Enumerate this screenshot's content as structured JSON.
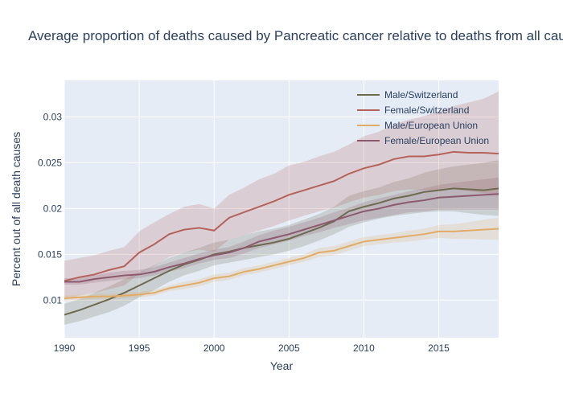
{
  "chart_data": {
    "type": "line",
    "title": "Average proportion of deaths caused by Pancreatic cancer relative to deaths from all causes",
    "xlabel": "Year",
    "ylabel": "Percent out of all death causes",
    "xlim": [
      1990,
      2019
    ],
    "ylim": [
      0.0059,
      0.034
    ],
    "x_ticks": [
      1990,
      1995,
      2000,
      2005,
      2010,
      2015
    ],
    "y_ticks": [
      0.01,
      0.015,
      0.02,
      0.025,
      0.03
    ],
    "y_tick_labels": [
      "0.01",
      "0.015",
      "0.02",
      "0.025",
      "0.03"
    ],
    "grid": true,
    "legend_position": "top-right",
    "x": [
      1990,
      1991,
      1992,
      1993,
      1994,
      1995,
      1996,
      1997,
      1998,
      1999,
      2000,
      2001,
      2002,
      2003,
      2004,
      2005,
      2006,
      2007,
      2008,
      2009,
      2010,
      2011,
      2012,
      2013,
      2014,
      2015,
      2016,
      2017,
      2018,
      2019
    ],
    "series": [
      {
        "name": "Male/Switzerland",
        "color": "#6e6a4f",
        "values": [
          0.0084,
          0.0089,
          0.0095,
          0.0101,
          0.0108,
          0.0116,
          0.0124,
          0.0132,
          0.0139,
          0.0144,
          0.015,
          0.0153,
          0.0157,
          0.016,
          0.0163,
          0.0167,
          0.0173,
          0.0179,
          0.0186,
          0.0197,
          0.0202,
          0.0206,
          0.0211,
          0.0214,
          0.0218,
          0.022,
          0.0222,
          0.0221,
          0.022,
          0.0222
        ],
        "lower": [
          0.0073,
          0.0077,
          0.0082,
          0.0087,
          0.0094,
          0.0103,
          0.0111,
          0.012,
          0.0127,
          0.0132,
          0.0138,
          0.0141,
          0.0144,
          0.0147,
          0.015,
          0.0154,
          0.0159,
          0.0165,
          0.0172,
          0.018,
          0.0185,
          0.0189,
          0.0192,
          0.0194,
          0.0196,
          0.0197,
          0.0197,
          0.0195,
          0.0193,
          0.0192
        ],
        "upper": [
          0.0096,
          0.0101,
          0.0108,
          0.0115,
          0.0123,
          0.013,
          0.0138,
          0.0146,
          0.0152,
          0.0157,
          0.0163,
          0.0166,
          0.0171,
          0.0175,
          0.0178,
          0.0182,
          0.0188,
          0.0194,
          0.0202,
          0.0214,
          0.0219,
          0.0223,
          0.0229,
          0.0233,
          0.0239,
          0.0243,
          0.0246,
          0.0248,
          0.025,
          0.0253
        ]
      },
      {
        "name": "Female/Switzerland",
        "color": "#b5625a",
        "values": [
          0.0121,
          0.0125,
          0.0128,
          0.0133,
          0.0137,
          0.0152,
          0.0161,
          0.0172,
          0.0177,
          0.0179,
          0.0176,
          0.019,
          0.0196,
          0.0202,
          0.0208,
          0.0215,
          0.022,
          0.0225,
          0.023,
          0.0238,
          0.0244,
          0.0248,
          0.0254,
          0.0257,
          0.0257,
          0.0259,
          0.0262,
          0.0261,
          0.0261,
          0.026
        ],
        "lower": [
          0.01,
          0.0105,
          0.0108,
          0.0112,
          0.0116,
          0.0129,
          0.0137,
          0.0147,
          0.0152,
          0.0155,
          0.0153,
          0.0166,
          0.0171,
          0.0176,
          0.0181,
          0.0187,
          0.0192,
          0.0197,
          0.0201,
          0.0207,
          0.0212,
          0.0215,
          0.0219,
          0.0221,
          0.022,
          0.022,
          0.0221,
          0.0219,
          0.0217,
          0.0214
        ],
        "upper": [
          0.0143,
          0.0146,
          0.0149,
          0.0154,
          0.0158,
          0.0175,
          0.0185,
          0.0194,
          0.0202,
          0.0205,
          0.02,
          0.0215,
          0.0223,
          0.0232,
          0.0238,
          0.0247,
          0.0251,
          0.0257,
          0.0262,
          0.027,
          0.0279,
          0.0284,
          0.0292,
          0.0297,
          0.0301,
          0.0306,
          0.0312,
          0.0316,
          0.032,
          0.0328
        ]
      },
      {
        "name": "Male/European Union",
        "color": "#e0ac69",
        "values": [
          0.0102,
          0.0103,
          0.0104,
          0.0104,
          0.0105,
          0.0106,
          0.0108,
          0.0113,
          0.0116,
          0.0119,
          0.0124,
          0.0126,
          0.0131,
          0.0134,
          0.0138,
          0.0142,
          0.0146,
          0.0152,
          0.0154,
          0.0159,
          0.0164,
          0.0166,
          0.0168,
          0.017,
          0.0172,
          0.0175,
          0.0175,
          0.0176,
          0.0177,
          0.0178
        ],
        "lower": [
          0.0099,
          0.01,
          0.0101,
          0.0101,
          0.0102,
          0.0103,
          0.0105,
          0.011,
          0.0112,
          0.0115,
          0.012,
          0.0122,
          0.0127,
          0.013,
          0.0134,
          0.0138,
          0.0142,
          0.0147,
          0.0149,
          0.0154,
          0.0159,
          0.0161,
          0.0163,
          0.0164,
          0.0166,
          0.0168,
          0.0167,
          0.0167,
          0.0166,
          0.0166
        ],
        "upper": [
          0.0105,
          0.0106,
          0.0107,
          0.0107,
          0.0108,
          0.0109,
          0.0111,
          0.0116,
          0.012,
          0.0123,
          0.0128,
          0.013,
          0.0135,
          0.0138,
          0.0142,
          0.0146,
          0.015,
          0.0157,
          0.0159,
          0.0164,
          0.0169,
          0.0171,
          0.0173,
          0.0176,
          0.0178,
          0.0182,
          0.0183,
          0.0185,
          0.0188,
          0.019
        ]
      },
      {
        "name": "Female/European Union",
        "color": "#8c5a6e",
        "values": [
          0.012,
          0.012,
          0.0123,
          0.0125,
          0.0127,
          0.0128,
          0.0131,
          0.0136,
          0.014,
          0.0145,
          0.0149,
          0.0152,
          0.0157,
          0.0164,
          0.0168,
          0.0172,
          0.0177,
          0.0182,
          0.0187,
          0.0192,
          0.0197,
          0.02,
          0.0204,
          0.0207,
          0.0209,
          0.0212,
          0.0213,
          0.0214,
          0.0215,
          0.0216
        ],
        "lower": [
          0.0117,
          0.0117,
          0.0119,
          0.0121,
          0.0123,
          0.0124,
          0.0127,
          0.0131,
          0.0135,
          0.014,
          0.0144,
          0.0146,
          0.0151,
          0.0157,
          0.0161,
          0.0165,
          0.017,
          0.0174,
          0.0179,
          0.0183,
          0.0187,
          0.019,
          0.0193,
          0.0196,
          0.0197,
          0.0199,
          0.0199,
          0.0199,
          0.0199,
          0.0199
        ],
        "upper": [
          0.0124,
          0.0124,
          0.0127,
          0.013,
          0.0132,
          0.0133,
          0.0136,
          0.0141,
          0.0146,
          0.0151,
          0.0155,
          0.0158,
          0.0164,
          0.0171,
          0.0176,
          0.018,
          0.0185,
          0.019,
          0.0196,
          0.0201,
          0.0207,
          0.0211,
          0.0215,
          0.0219,
          0.0222,
          0.0226,
          0.0228,
          0.023,
          0.0232,
          0.0234
        ]
      }
    ]
  }
}
